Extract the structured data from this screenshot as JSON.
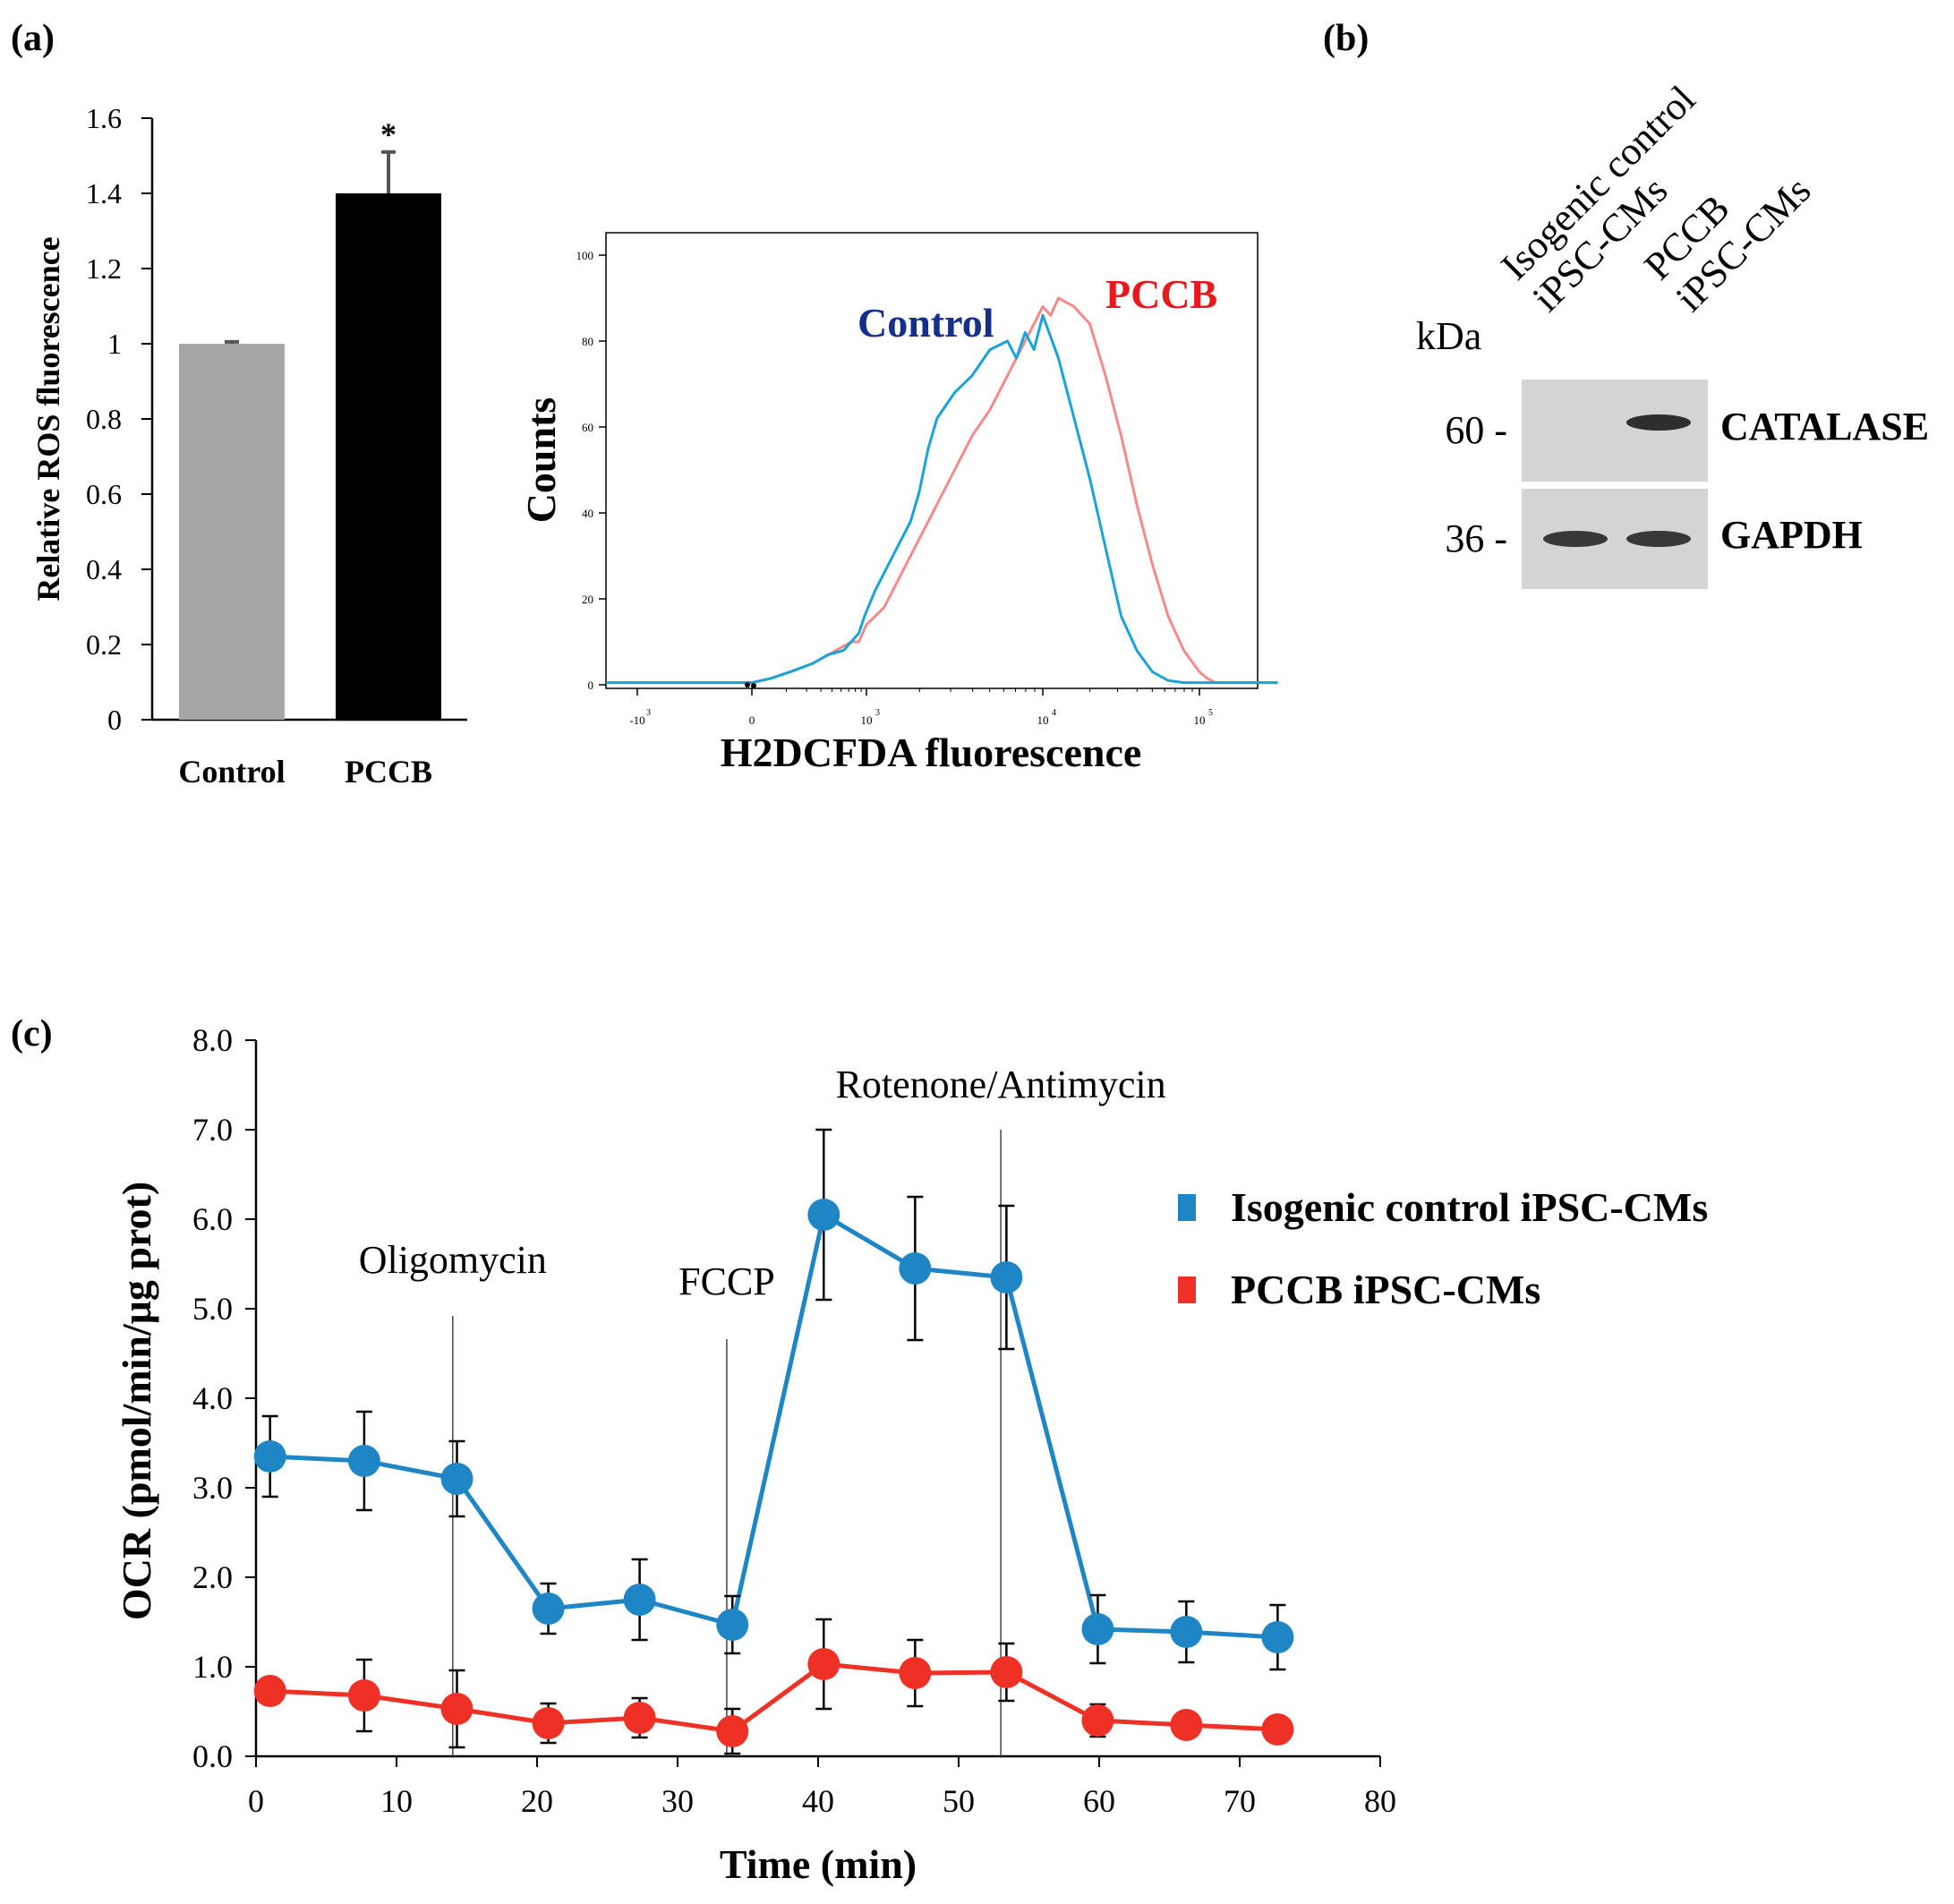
{
  "panel_labels": {
    "a": "(a)",
    "b": "(b)",
    "c": "(c)"
  },
  "colors": {
    "control_bar": "#a6a6a6",
    "pccb_bar": "#000000",
    "flow_control": "#1aa3d6",
    "flow_pccb": "#f58a8a",
    "flow_control_label": "#13308a",
    "flow_pccb_label": "#e8191c",
    "ocr_control": "#1f86c6",
    "ocr_pccb": "#ee3124",
    "blot_bg": "#d4d4d4"
  },
  "chart_data": [
    {
      "id": "ros-bar",
      "type": "bar",
      "ylabel": "Relative ROS fluorescence",
      "ylim": [
        0,
        1.6
      ],
      "yticks": [
        "0",
        "0.2",
        "0.4",
        "0.6",
        "0.8",
        "1",
        "1.2",
        "1.4",
        "1.6"
      ],
      "categories": [
        "Control",
        "PCCB"
      ],
      "values": [
        1.0,
        1.4
      ],
      "errors": [
        0.005,
        0.11
      ],
      "significance": [
        "",
        "*"
      ]
    },
    {
      "id": "flow-histogram",
      "type": "line",
      "xlabel": "H2DCFDA fluorescence",
      "ylabel": "Counts",
      "ylim": [
        0,
        100
      ],
      "yticks": [
        "0",
        "20",
        "40",
        "60",
        "80",
        "100"
      ],
      "xticks": [
        {
          "base": "-10",
          "exp": "3"
        },
        {
          "base": "0",
          "exp": ""
        },
        {
          "base": "10",
          "exp": "3"
        },
        {
          "base": "10",
          "exp": "4"
        },
        {
          "base": "10",
          "exp": "5"
        }
      ],
      "series": [
        {
          "name": "Control",
          "x": [
            -3.5,
            -3,
            -1,
            -0.5,
            0,
            0.5,
            1,
            1.3,
            1.6,
            1.8,
            2,
            2.2,
            2.4,
            2.6,
            2.8,
            2.95,
            3.05,
            3.15,
            3.25,
            3.3,
            3.35,
            3.4,
            3.5,
            3.6,
            3.7,
            3.8,
            3.85,
            3.9,
            3.95,
            4.0,
            4.1,
            4.2,
            4.3,
            4.4,
            4.5,
            4.6,
            4.7,
            4.8,
            4.9,
            5.0,
            5.5
          ],
          "y": [
            0.5,
            0.5,
            0.5,
            0.5,
            0.5,
            1.5,
            3,
            4,
            5,
            6,
            7,
            7.5,
            8,
            10,
            12,
            16,
            22,
            30,
            38,
            45,
            55,
            62,
            68,
            72,
            78,
            80,
            76,
            82,
            78,
            86,
            76,
            62,
            48,
            32,
            16,
            8,
            3,
            1,
            0.5,
            0.5,
            0.5
          ]
        },
        {
          "name": "PCCB",
          "x": [
            -3.5,
            -3,
            -1,
            -0.5,
            0,
            0.5,
            1,
            1.3,
            1.6,
            1.8,
            2,
            2.2,
            2.4,
            2.6,
            2.8,
            3.0,
            3.1,
            3.2,
            3.3,
            3.4,
            3.5,
            3.6,
            3.7,
            3.8,
            3.9,
            3.95,
            4.0,
            4.05,
            4.1,
            4.2,
            4.3,
            4.4,
            4.5,
            4.6,
            4.7,
            4.8,
            4.9,
            5.0,
            5.05,
            5.1,
            5.5
          ],
          "y": [
            0.5,
            0.5,
            0.5,
            0.5,
            0.5,
            1.5,
            3,
            4,
            5,
            6,
            7,
            8,
            9,
            10,
            10,
            14,
            18,
            26,
            34,
            42,
            50,
            58,
            64,
            72,
            80,
            84,
            88,
            86,
            90,
            88,
            84,
            72,
            58,
            42,
            28,
            16,
            8,
            3,
            1.5,
            0.5,
            0.5
          ]
        }
      ],
      "annotations": [
        "Control",
        "PCCB"
      ]
    },
    {
      "id": "ocr-line",
      "type": "line",
      "xlabel": "Time (min)",
      "ylabel": "OCR (pmol/min/μg prot)",
      "xlim": [
        0,
        80
      ],
      "ylim": [
        0,
        8
      ],
      "xticks": [
        "0",
        "10",
        "20",
        "30",
        "40",
        "50",
        "60",
        "70",
        "80"
      ],
      "yticks": [
        "0.0",
        "1.0",
        "2.0",
        "3.0",
        "4.0",
        "5.0",
        "6.0",
        "7.0",
        "8.0"
      ],
      "x": [
        1,
        7.7,
        14.3,
        20.8,
        27.3,
        33.9,
        40.4,
        46.9,
        53.4,
        59.9,
        66.2,
        72.7
      ],
      "series": [
        {
          "name": "Isogenic control iPSC-CMs",
          "values": [
            3.35,
            3.3,
            3.1,
            1.65,
            1.75,
            1.47,
            6.05,
            5.45,
            5.35,
            1.42,
            1.39,
            1.33
          ],
          "errors": [
            0.45,
            0.55,
            0.42,
            0.28,
            0.45,
            0.32,
            0.95,
            0.8,
            0.8,
            0.38,
            0.34,
            0.36
          ]
        },
        {
          "name": "PCCB iPSC-CMs",
          "values": [
            0.73,
            0.68,
            0.53,
            0.37,
            0.43,
            0.28,
            1.03,
            0.93,
            0.94,
            0.4,
            0.35,
            0.3
          ],
          "errors": [
            0.12,
            0.4,
            0.43,
            0.22,
            0.22,
            0.25,
            0.5,
            0.37,
            0.32,
            0.18,
            0.1,
            0.08
          ]
        }
      ],
      "markers": [
        {
          "label": "Oligomycin",
          "x": 14.0
        },
        {
          "label": "FCCP",
          "x": 33.5
        },
        {
          "label": "Rotenone/Antimycin",
          "x": 53.0
        }
      ],
      "legend": [
        "Isogenic control iPSC-CMs",
        "PCCB iPSC-CMs"
      ]
    }
  ],
  "western_blot": {
    "unit": "kDa",
    "lanes": [
      "Isogenic control\niPSC-CMs",
      "PCCB\niPSC-CMs"
    ],
    "bands": [
      {
        "weight": "60 -",
        "label": "CATALASE",
        "intensity": [
          0,
          0.9
        ]
      },
      {
        "weight": "36 -",
        "label": "GAPDH",
        "intensity": [
          0.85,
          0.85
        ]
      }
    ]
  }
}
